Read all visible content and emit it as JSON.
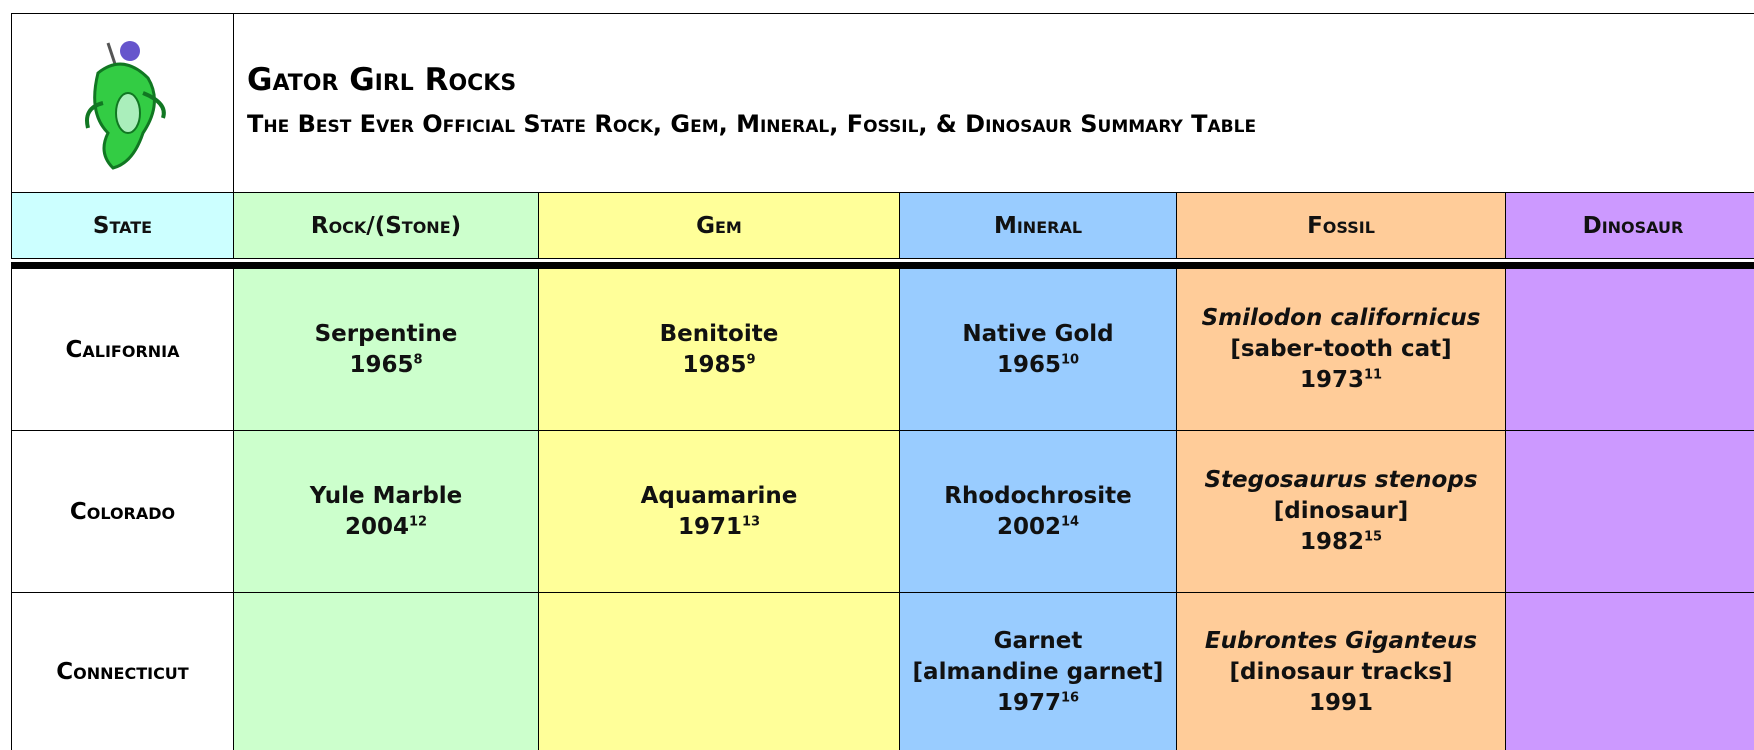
{
  "header": {
    "title": "Gator Girl Rocks",
    "subtitle": "The Best Ever Official State Rock, Gem, Mineral, Fossil, & Dinosaur Summary Table"
  },
  "table": {
    "columns": [
      "State",
      "Rock/(Stone)",
      "Gem",
      "Mineral",
      "Fossil",
      "Dinosaur"
    ],
    "rows": [
      {
        "state": "California",
        "cells": [
          {
            "name": "Serpentine",
            "year": "1965",
            "footnote": "8"
          },
          {
            "name": "Benitoite",
            "year": "1985",
            "footnote": "9"
          },
          {
            "name": "Native Gold",
            "year": "1965",
            "footnote": "10"
          },
          {
            "name": "Smilodon californicus",
            "common": "[saber-tooth cat]",
            "year": "1973",
            "footnote": "11"
          },
          null
        ]
      },
      {
        "state": "Colorado",
        "cells": [
          {
            "name": "Yule Marble",
            "year": "2004",
            "footnote": "12"
          },
          {
            "name": "Aquamarine",
            "year": "1971",
            "footnote": "13"
          },
          {
            "name": "Rhodochrosite",
            "year": "2002",
            "footnote": "14"
          },
          {
            "name": "Stegosaurus stenops",
            "common": "[dinosaur]",
            "year": "1982",
            "footnote": "15"
          },
          null
        ]
      },
      {
        "state": "Connecticut",
        "cells": [
          null,
          null,
          {
            "name": "Garnet",
            "common": "[almandine garnet]",
            "year": "1977",
            "footnote": "16"
          },
          {
            "name": "Eubrontes Giganteus",
            "common": "[dinosaur tracks]",
            "year": "1991"
          },
          null
        ]
      }
    ]
  }
}
